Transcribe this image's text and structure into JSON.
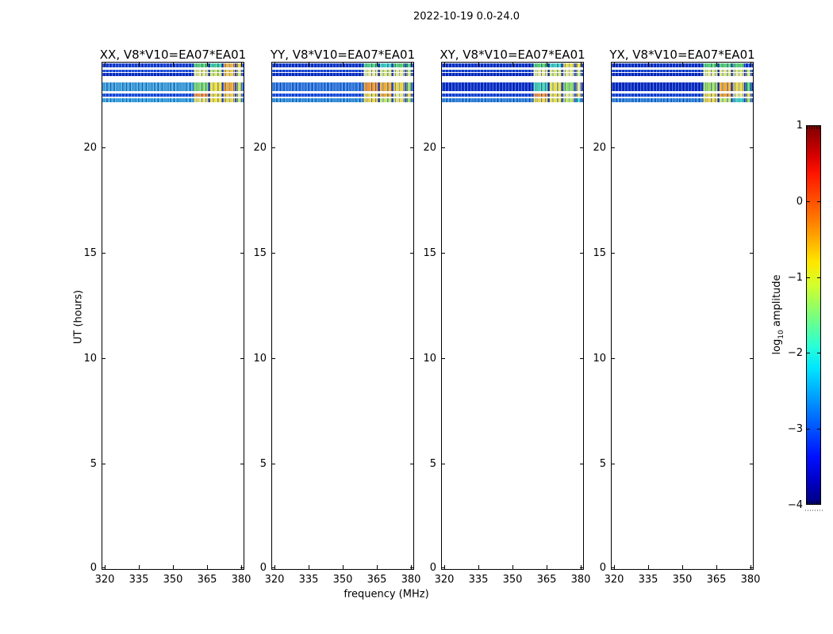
{
  "chart_data": {
    "type": "heatmap",
    "title": "2022-10-19 0.0-24.0",
    "xlabel": "frequency (MHz)",
    "ylabel": "UT (hours)",
    "xlim": [
      318.97,
      381.03
    ],
    "ylim": [
      0,
      24
    ],
    "x_ticks": [
      "320",
      "335",
      "350",
      "365",
      "380"
    ],
    "x_tick_values": [
      320,
      335,
      350,
      365,
      380
    ],
    "y_ticks": [
      "0",
      "5",
      "10",
      "15",
      "20"
    ],
    "y_tick_values": [
      0,
      5,
      10,
      15,
      20
    ],
    "grid": false,
    "bright_patch_freq_range_mhz": [
      361,
      381
    ],
    "colorbar": {
      "label_prefix": "log",
      "label_sub": "10",
      "label_suffix": " amplitude",
      "cmap": "jet",
      "vmin": -4,
      "vmax": 1,
      "ticks": [
        "1",
        "0",
        "−1",
        "−2",
        "−3",
        "−4"
      ],
      "tick_values": [
        1,
        0,
        -1,
        -2,
        -3,
        -4
      ]
    },
    "seg_widths": [
      0.645,
      0.105,
      0.012,
      0.085,
      0.012,
      0.08,
      0.012,
      0.034,
      0.015
    ],
    "amplitude_scale": {
      "#0a1fb0": -3.8,
      "#0a28c0": -3.7,
      "#0c2cc4": -3.6,
      "#0e2fc8": -3.6,
      "#0e30c8": -3.6,
      "#1030c8": -3.6,
      "#1236cc": -3.5,
      "#1440d0": -3.4,
      "#1a3fd4": -3.4,
      "#1a46d8": -3.3,
      "#1e4fe0": -3.2,
      "#2050e0": -3.1,
      "#2b6de0": -2.9,
      "#2e77dd": -2.8,
      "#2b7fd8": -2.7,
      "#2f8fd8": -2.6,
      "#35a2dc": -2.3,
      "#3b9fd9": -2.3,
      "#45cfae": -1.8,
      "#3ecfc0": -1.9,
      "#3ecf9a": -1.7,
      "#4ecf7f": -1.5,
      "#55d06e": -1.5,
      "#7fdc6a": -1.4,
      "#8fdc6a": -1.3,
      "#9fdc5f": -1.2,
      "#bfe76a": -1.1,
      "#c8e77a": -1.05,
      "#cfe75a": -1.0,
      "#d9e77a": -1.0,
      "#d9e76a": -1.0,
      "#e8e894": -0.9,
      "#e8e787": -0.9,
      "#e8e06a": -0.8,
      "#e8e04e": -0.8,
      "#e8d84e": -0.7,
      "#ead44a": -0.7,
      "#f2e23c": -0.6,
      "#f0d23a": -0.6,
      "#f2cc4e": -0.5,
      "#f2b23c": -0.4,
      "#f0ae32": -0.4,
      "#f2a832": -0.35,
      "#f0a030": -0.3,
      "#f0952e": -0.3,
      "#f0903a": -0.3
    },
    "panels": [
      {
        "title": "XX, V8*V10=EA07*EA01",
        "rows": [
          {
            "ut": [
              23.78,
              23.96
            ],
            "colors": [
              "#1a3fd4",
              "#55d06e",
              "#0a1fb0",
              "#3ecf9a",
              "#0a1fb0",
              "#f2b23c",
              "#0a1fb0",
              "#f0d23a",
              "#1a3fd4"
            ]
          },
          {
            "ut": [
              23.55,
              23.66
            ],
            "colors": [
              "#2050e0",
              "#e8e787",
              "#1030c8",
              "#bfe76a",
              "#1030c8",
              "#f2cc4e",
              "#1030c8",
              "#e8e787",
              "#2050e0"
            ]
          },
          {
            "ut": [
              23.36,
              23.51
            ],
            "colors": [
              "#0c2cc4",
              "#e8e787",
              "#0a1fb0",
              "#d9e76a",
              "#0a1fb0",
              "#f2cc4e",
              "#0a1fb0",
              "#d9e76a",
              "#0c2cc4"
            ]
          },
          {
            "ut": [
              22.65,
              23.06
            ],
            "colors": [
              "#3b9fd9",
              "#7fdc6a",
              "#1030c8",
              "#f2e23c",
              "#1030c8",
              "#f2a832",
              "#1030c8",
              "#cfe75a",
              "#2b6de0"
            ]
          },
          {
            "ut": [
              22.39,
              22.54
            ],
            "colors": [
              "#1e4fe0",
              "#f0903a",
              "#1030c8",
              "#e8d84e",
              "#1030c8",
              "#f2cc4e",
              "#1030c8",
              "#e8e787",
              "#1e4fe0"
            ]
          },
          {
            "ut": [
              22.12,
              22.31
            ],
            "colors": [
              "#35a2dc",
              "#e8e06a",
              "#1030c8",
              "#f2e23c",
              "#1030c8",
              "#e8d84e",
              "#1030c8",
              "#bfe76a",
              "#2b6de0"
            ]
          }
        ]
      },
      {
        "title": "YY, V8*V10=EA07*EA01",
        "rows": [
          {
            "ut": [
              23.78,
              23.96
            ],
            "colors": [
              "#1236cc",
              "#4ecf7f",
              "#0a1fb0",
              "#3ecfc0",
              "#0a1fb0",
              "#55d06e",
              "#0a1fb0",
              "#4ecf7f",
              "#1236cc"
            ]
          },
          {
            "ut": [
              23.55,
              23.66
            ],
            "colors": [
              "#1a46d8",
              "#e8e894",
              "#1030c8",
              "#d9e77a",
              "#1030c8",
              "#e8e894",
              "#1030c8",
              "#c8e77a",
              "#1a46d8"
            ]
          },
          {
            "ut": [
              23.36,
              23.51
            ],
            "colors": [
              "#0c2cc4",
              "#e8e894",
              "#0a1fb0",
              "#d9e77a",
              "#0a1fb0",
              "#e8e894",
              "#0a1fb0",
              "#d9e77a",
              "#0c2cc4"
            ]
          },
          {
            "ut": [
              22.65,
              23.06
            ],
            "colors": [
              "#2e77dd",
              "#f0952e",
              "#1030c8",
              "#f0ae32",
              "#1030c8",
              "#ead44a",
              "#1030c8",
              "#9fdc5f",
              "#1e4fe0"
            ]
          },
          {
            "ut": [
              22.39,
              22.54
            ],
            "colors": [
              "#1e4fe0",
              "#e8d84e",
              "#1030c8",
              "#f0ae32",
              "#1030c8",
              "#e8e894",
              "#1030c8",
              "#ead44a",
              "#1e4fe0"
            ]
          },
          {
            "ut": [
              22.12,
              22.31
            ],
            "colors": [
              "#2f8fd8",
              "#ead44a",
              "#1030c8",
              "#bfe76a",
              "#1030c8",
              "#e8e06a",
              "#1030c8",
              "#9fdc5f",
              "#2b6de0"
            ]
          }
        ]
      },
      {
        "title": "XY, V8*V10=EA07*EA01",
        "rows": [
          {
            "ut": [
              23.78,
              23.96
            ],
            "colors": [
              "#0e30c8",
              "#55d06e",
              "#0a1fb0",
              "#3ecfc0",
              "#0a1fb0",
              "#e8e04e",
              "#0a1fb0",
              "#f2e23c",
              "#0e30c8"
            ]
          },
          {
            "ut": [
              23.55,
              23.66
            ],
            "colors": [
              "#1440d0",
              "#e8e894",
              "#0a1fb0",
              "#d9e77a",
              "#0a1fb0",
              "#e8e894",
              "#0a1fb0",
              "#d9e77a",
              "#1440d0"
            ]
          },
          {
            "ut": [
              23.36,
              23.51
            ],
            "colors": [
              "#0a28c0",
              "#e8e894",
              "#0a1fb0",
              "#d9e77a",
              "#0a1fb0",
              "#e8e894",
              "#0a1fb0",
              "#c8e77a",
              "#0a28c0"
            ]
          },
          {
            "ut": [
              22.65,
              23.06
            ],
            "colors": [
              "#0e2fc8",
              "#45cfae",
              "#0a1fb0",
              "#e8e04e",
              "#0a1fb0",
              "#8fdc6a",
              "#0a1fb0",
              "#e8e894",
              "#0e2fc8"
            ]
          },
          {
            "ut": [
              22.39,
              22.54
            ],
            "colors": [
              "#1a46d8",
              "#f0903a",
              "#1030c8",
              "#e8d84e",
              "#1030c8",
              "#e8e894",
              "#1030c8",
              "#ead44a",
              "#1a46d8"
            ]
          },
          {
            "ut": [
              22.12,
              22.31
            ],
            "colors": [
              "#2b7fd8",
              "#ead44a",
              "#1030c8",
              "#e8e04e",
              "#1030c8",
              "#bfe76a",
              "#1030c8",
              "#3ecfc0",
              "#1e4fe0"
            ]
          }
        ]
      },
      {
        "title": "YX, V8*V10=EA07*EA01",
        "rows": [
          {
            "ut": [
              23.78,
              23.96
            ],
            "colors": [
              "#0e30c8",
              "#55d06e",
              "#1030c8",
              "#55d06e",
              "#1030c8",
              "#55d06e",
              "#1030c8",
              "#1a3fd4",
              "#0e30c8"
            ]
          },
          {
            "ut": [
              23.55,
              23.66
            ],
            "colors": [
              "#1440d0",
              "#d9e77a",
              "#0a1fb0",
              "#e8e894",
              "#0a1fb0",
              "#d9e77a",
              "#0a1fb0",
              "#c8e77a",
              "#1440d0"
            ]
          },
          {
            "ut": [
              23.36,
              23.51
            ],
            "colors": [
              "#0a28c0",
              "#e8e894",
              "#0a1fb0",
              "#d9e77a",
              "#0a1fb0",
              "#e8e894",
              "#0a1fb0",
              "#d9e77a",
              "#0a28c0"
            ]
          },
          {
            "ut": [
              22.65,
              23.06
            ],
            "colors": [
              "#0c2cc4",
              "#9fdc5f",
              "#0a1fb0",
              "#f2a832",
              "#0a1fb0",
              "#e8d84e",
              "#0a1fb0",
              "#55d06e",
              "#0c2cc4"
            ]
          },
          {
            "ut": [
              22.39,
              22.54
            ],
            "colors": [
              "#1a46d8",
              "#e8d84e",
              "#1030c8",
              "#f0a030",
              "#1030c8",
              "#e8e894",
              "#1030c8",
              "#ead44a",
              "#1a46d8"
            ]
          },
          {
            "ut": [
              22.12,
              22.31
            ],
            "colors": [
              "#2b7fd8",
              "#ead44a",
              "#1030c8",
              "#bfe76a",
              "#1030c8",
              "#3ecfc0",
              "#1030c8",
              "#9fdc5f",
              "#1e4fe0"
            ]
          }
        ]
      }
    ]
  }
}
